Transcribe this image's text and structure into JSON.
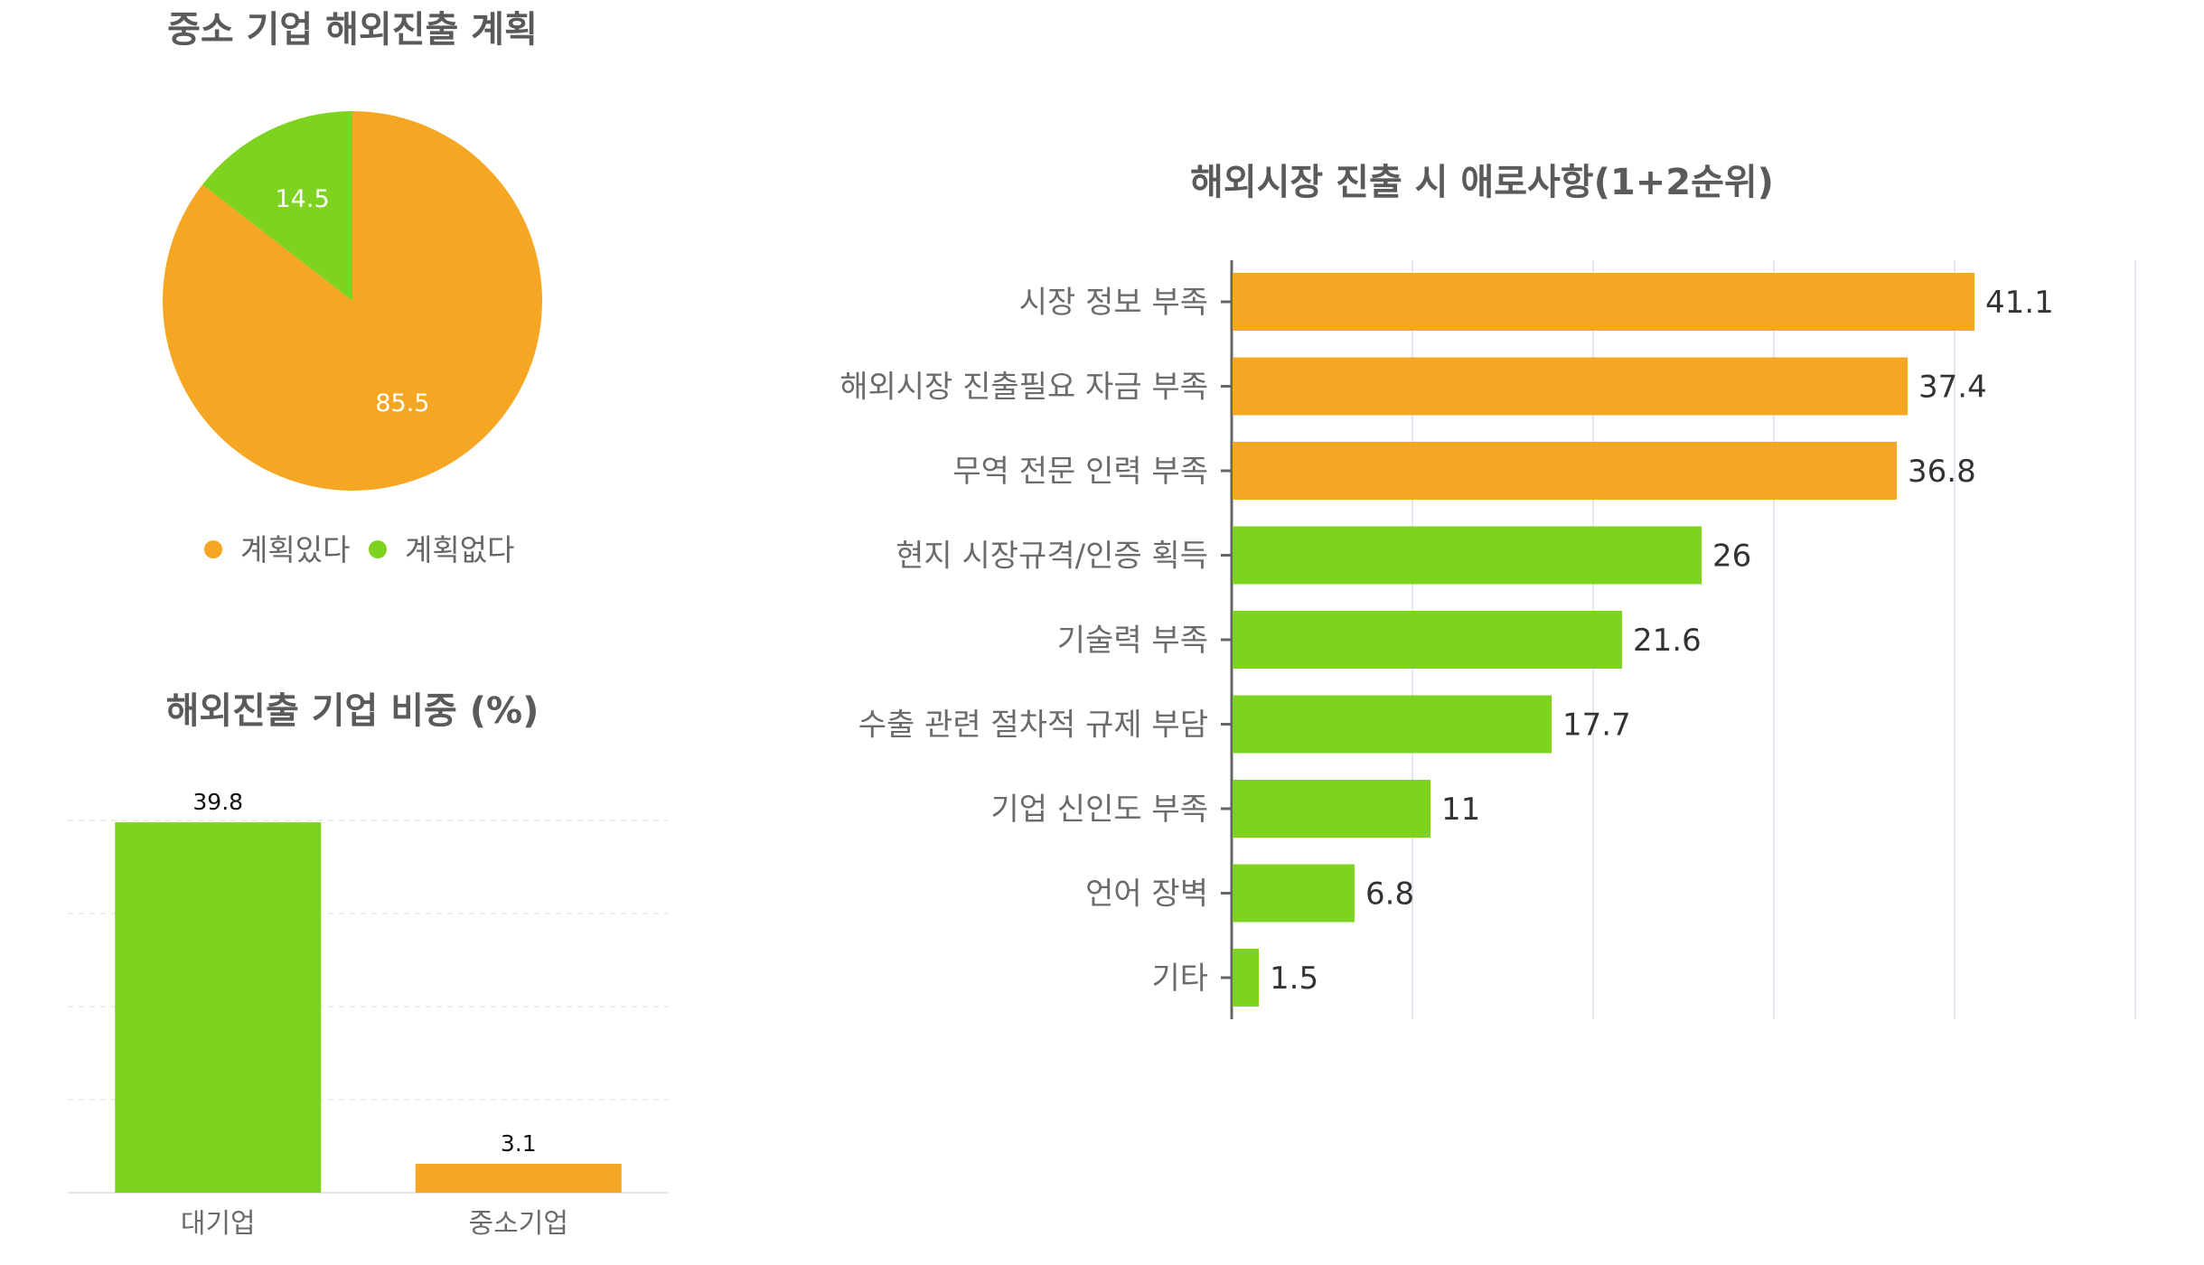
{
  "colors": {
    "orange": "#F5A623",
    "green": "#7ED321",
    "grid": "#e6e6f0",
    "axis": "#666666"
  },
  "chart_data": [
    {
      "type": "pie",
      "title": "중소 기업 해외진출 계획",
      "slices": [
        {
          "name": "계획있다",
          "value": 85.5,
          "label": "85.5",
          "color": "#F5A623"
        },
        {
          "name": "계획없다",
          "value": 14.5,
          "label": "14.5",
          "color": "#7ED321"
        }
      ],
      "legend": [
        "계획있다",
        "계획없다"
      ],
      "legend_position": "bottom"
    },
    {
      "type": "bar",
      "title": "해외진출 기업 비중 (%)",
      "categories": [
        "대기업",
        "중소기업"
      ],
      "values": [
        39.8,
        3.1
      ],
      "value_labels": [
        "39.8",
        "3.1"
      ],
      "colors": [
        "#7ED321",
        "#F5A623"
      ],
      "ylim": [
        0,
        40
      ],
      "grid": true
    },
    {
      "type": "bar",
      "orientation": "horizontal",
      "title": "해외시장 진출 시 애로사항(1+2순위)",
      "categories": [
        "시장 정보 부족",
        "해외시장 진출필요 자금 부족",
        "무역 전문 인력 부족",
        "현지 시장규격/인증 획득",
        "기술력 부족",
        "수출 관련 절차적 규제 부담",
        "기업 신인도 부족",
        "언어 장벽",
        "기타"
      ],
      "values": [
        41.1,
        37.4,
        36.8,
        26,
        21.6,
        17.7,
        11,
        6.8,
        1.5
      ],
      "value_labels": [
        "41.1",
        "37.4",
        "36.8",
        "26",
        "21.6",
        "17.7",
        "11",
        "6.8",
        "1.5"
      ],
      "colors": [
        "#F5A623",
        "#F5A623",
        "#F5A623",
        "#7ED321",
        "#7ED321",
        "#7ED321",
        "#7ED321",
        "#7ED321",
        "#7ED321"
      ],
      "xlim": [
        0,
        50
      ],
      "grid": true
    }
  ]
}
